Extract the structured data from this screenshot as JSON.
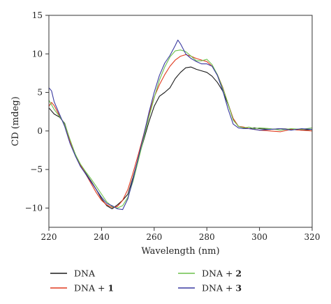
{
  "chart_data": {
    "type": "line",
    "title": "",
    "xlabel": "Wavelength (nm)",
    "ylabel": "CD (mdeg)",
    "xlim": [
      220,
      320
    ],
    "ylim": [
      -12.5,
      15
    ],
    "x_ticks": [
      220,
      240,
      260,
      280,
      300,
      320
    ],
    "y_ticks": [
      -10,
      -5,
      0,
      5,
      10,
      15
    ],
    "grid": false,
    "legend_position": "bottom",
    "series": [
      {
        "name": "DNA",
        "legend_prefix": "DNA",
        "legend_suffix": "",
        "color": "#1a1a1a",
        "points": [
          [
            220,
            3.0
          ],
          [
            222,
            2.2
          ],
          [
            224,
            1.8
          ],
          [
            226,
            1.0
          ],
          [
            228,
            -1.2
          ],
          [
            230,
            -3.0
          ],
          [
            232,
            -4.5
          ],
          [
            234,
            -5.5
          ],
          [
            236,
            -6.5
          ],
          [
            238,
            -7.6
          ],
          [
            240,
            -8.8
          ],
          [
            242,
            -9.7
          ],
          [
            244,
            -10.1
          ],
          [
            246,
            -9.6
          ],
          [
            248,
            -9.0
          ],
          [
            250,
            -8.2
          ],
          [
            252,
            -6.0
          ],
          [
            254,
            -3.5
          ],
          [
            256,
            -1.2
          ],
          [
            258,
            1.2
          ],
          [
            260,
            3.2
          ],
          [
            262,
            4.5
          ],
          [
            264,
            5.0
          ],
          [
            266,
            5.6
          ],
          [
            268,
            6.8
          ],
          [
            270,
            7.6
          ],
          [
            272,
            8.2
          ],
          [
            274,
            8.3
          ],
          [
            276,
            8.0
          ],
          [
            278,
            7.8
          ],
          [
            280,
            7.6
          ],
          [
            282,
            7.1
          ],
          [
            284,
            6.3
          ],
          [
            286,
            5.2
          ],
          [
            288,
            3.5
          ],
          [
            290,
            1.6
          ],
          [
            292,
            0.6
          ],
          [
            294,
            0.4
          ],
          [
            296,
            0.3
          ],
          [
            298,
            0.4
          ],
          [
            300,
            0.3
          ],
          [
            304,
            0.2
          ],
          [
            308,
            0.3
          ],
          [
            312,
            0.2
          ],
          [
            316,
            0.1
          ],
          [
            320,
            0.2
          ]
        ]
      },
      {
        "name": "DNA + 1",
        "legend_prefix": "DNA + ",
        "legend_suffix": "1",
        "color": "#e03a1e",
        "points": [
          [
            220,
            3.2
          ],
          [
            221,
            3.7
          ],
          [
            222,
            3.3
          ],
          [
            224,
            2.0
          ],
          [
            226,
            0.8
          ],
          [
            228,
            -1.3
          ],
          [
            230,
            -3.1
          ],
          [
            232,
            -4.4
          ],
          [
            234,
            -5.6
          ],
          [
            236,
            -6.8
          ],
          [
            238,
            -8.0
          ],
          [
            240,
            -9.0
          ],
          [
            242,
            -9.6
          ],
          [
            244,
            -9.9
          ],
          [
            246,
            -9.8
          ],
          [
            248,
            -9.0
          ],
          [
            250,
            -7.6
          ],
          [
            252,
            -5.4
          ],
          [
            254,
            -3.0
          ],
          [
            256,
            -0.5
          ],
          [
            258,
            2.2
          ],
          [
            260,
            4.4
          ],
          [
            262,
            6.0
          ],
          [
            264,
            7.3
          ],
          [
            266,
            8.4
          ],
          [
            268,
            9.2
          ],
          [
            270,
            9.7
          ],
          [
            272,
            9.9
          ],
          [
            274,
            9.7
          ],
          [
            276,
            9.4
          ],
          [
            278,
            9.2
          ],
          [
            280,
            9.0
          ],
          [
            282,
            8.4
          ],
          [
            284,
            7.3
          ],
          [
            286,
            5.7
          ],
          [
            288,
            3.6
          ],
          [
            290,
            1.6
          ],
          [
            292,
            0.6
          ],
          [
            294,
            0.5
          ],
          [
            296,
            0.3
          ],
          [
            298,
            0.2
          ],
          [
            300,
            0.1
          ],
          [
            304,
            0.0
          ],
          [
            308,
            -0.1
          ],
          [
            312,
            0.2
          ],
          [
            316,
            0.1
          ],
          [
            320,
            0.0
          ]
        ]
      },
      {
        "name": "DNA + 2",
        "legend_prefix": "DNA + ",
        "legend_suffix": "2",
        "color": "#6cc04a",
        "points": [
          [
            220,
            4.0
          ],
          [
            222,
            2.8
          ],
          [
            224,
            1.9
          ],
          [
            226,
            0.9
          ],
          [
            228,
            -1.1
          ],
          [
            230,
            -3.0
          ],
          [
            232,
            -4.3
          ],
          [
            234,
            -5.3
          ],
          [
            236,
            -6.2
          ],
          [
            238,
            -7.2
          ],
          [
            240,
            -8.2
          ],
          [
            242,
            -9.2
          ],
          [
            244,
            -9.8
          ],
          [
            246,
            -10.0
          ],
          [
            248,
            -9.7
          ],
          [
            250,
            -8.6
          ],
          [
            252,
            -6.5
          ],
          [
            254,
            -3.8
          ],
          [
            256,
            -1.0
          ],
          [
            258,
            1.8
          ],
          [
            260,
            4.3
          ],
          [
            262,
            6.6
          ],
          [
            264,
            8.3
          ],
          [
            266,
            9.6
          ],
          [
            268,
            10.4
          ],
          [
            270,
            10.5
          ],
          [
            272,
            10.3
          ],
          [
            274,
            9.7
          ],
          [
            276,
            9.1
          ],
          [
            278,
            9.1
          ],
          [
            280,
            9.3
          ],
          [
            282,
            8.6
          ],
          [
            284,
            7.3
          ],
          [
            286,
            5.6
          ],
          [
            288,
            3.6
          ],
          [
            290,
            1.4
          ],
          [
            292,
            0.6
          ],
          [
            294,
            0.4
          ],
          [
            296,
            0.5
          ],
          [
            298,
            0.3
          ],
          [
            300,
            0.4
          ],
          [
            304,
            0.3
          ],
          [
            308,
            0.1
          ],
          [
            312,
            0.3
          ],
          [
            316,
            0.2
          ],
          [
            320,
            0.4
          ]
        ]
      },
      {
        "name": "DNA + 3",
        "legend_prefix": "DNA + ",
        "legend_suffix": "3",
        "color": "#3a3aa0",
        "points": [
          [
            220,
            5.6
          ],
          [
            221,
            5.2
          ],
          [
            222,
            3.8
          ],
          [
            224,
            2.2
          ],
          [
            226,
            0.6
          ],
          [
            228,
            -1.6
          ],
          [
            230,
            -3.2
          ],
          [
            232,
            -4.6
          ],
          [
            234,
            -5.6
          ],
          [
            236,
            -6.6
          ],
          [
            238,
            -7.6
          ],
          [
            240,
            -8.6
          ],
          [
            242,
            -9.4
          ],
          [
            244,
            -9.7
          ],
          [
            246,
            -10.1
          ],
          [
            248,
            -10.2
          ],
          [
            250,
            -8.8
          ],
          [
            252,
            -6.2
          ],
          [
            254,
            -3.4
          ],
          [
            256,
            -0.6
          ],
          [
            258,
            2.4
          ],
          [
            260,
            5.0
          ],
          [
            262,
            7.2
          ],
          [
            264,
            8.8
          ],
          [
            266,
            9.8
          ],
          [
            268,
            11.1
          ],
          [
            269,
            11.8
          ],
          [
            270,
            11.3
          ],
          [
            272,
            10.0
          ],
          [
            274,
            9.4
          ],
          [
            276,
            9.0
          ],
          [
            278,
            8.7
          ],
          [
            280,
            8.7
          ],
          [
            282,
            8.4
          ],
          [
            284,
            7.2
          ],
          [
            286,
            5.3
          ],
          [
            288,
            2.9
          ],
          [
            290,
            0.9
          ],
          [
            292,
            0.4
          ],
          [
            294,
            0.3
          ],
          [
            296,
            0.3
          ],
          [
            298,
            0.2
          ],
          [
            300,
            0.1
          ],
          [
            304,
            0.2
          ],
          [
            308,
            0.3
          ],
          [
            312,
            0.1
          ],
          [
            316,
            0.3
          ],
          [
            320,
            0.2
          ]
        ]
      }
    ]
  }
}
